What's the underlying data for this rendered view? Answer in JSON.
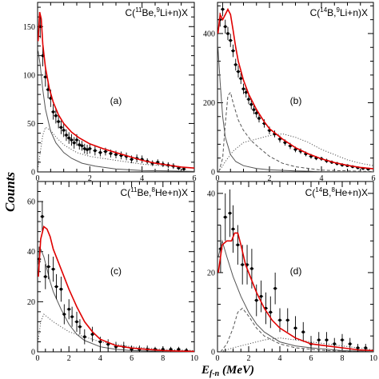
{
  "figure": {
    "ylabel": "Counts",
    "xlabel_main": "E",
    "xlabel_sub": "f-n",
    "xlabel_unit": " (MeV)"
  },
  "chart_data": [
    {
      "type": "scatter",
      "panel": "(a)",
      "title": {
        "pre": "C(",
        "sup1": "11",
        "mid": "Be,",
        "sup2": "9",
        "post": "Li+n)X"
      },
      "xlim": [
        0,
        6
      ],
      "ylim": [
        0,
        175
      ],
      "xticks": [
        0,
        2,
        4,
        6
      ],
      "yticks": [
        0,
        50,
        100,
        150
      ],
      "points": {
        "x": [
          0.1,
          0.2,
          0.3,
          0.4,
          0.5,
          0.6,
          0.7,
          0.8,
          0.9,
          1.0,
          1.1,
          1.2,
          1.3,
          1.4,
          1.5,
          1.6,
          1.7,
          1.8,
          1.9,
          2.0,
          2.2,
          2.4,
          2.6,
          2.8,
          3.0,
          3.2,
          3.4,
          3.6,
          3.8,
          4.0,
          4.2,
          4.4,
          4.6,
          4.8,
          5.0,
          5.2,
          5.4,
          5.6
        ],
        "y": [
          150,
          120,
          98,
          85,
          76,
          62,
          58,
          52,
          46,
          43,
          38,
          35,
          33,
          30,
          33,
          28,
          27,
          24,
          23,
          24,
          22,
          20,
          21,
          19,
          18,
          17,
          16,
          13,
          14,
          13,
          11,
          9,
          10,
          8,
          7,
          6,
          4,
          3
        ],
        "err": [
          12,
          11,
          10,
          9,
          9,
          8,
          8,
          7,
          7,
          7,
          6,
          6,
          6,
          6,
          6,
          5,
          5,
          5,
          5,
          5,
          5,
          4,
          4,
          4,
          4,
          4,
          4,
          4,
          4,
          4,
          3,
          3,
          3,
          3,
          3,
          3,
          2,
          2
        ]
      },
      "fit_total": {
        "x": [
          0.02,
          0.08,
          0.14,
          0.2,
          0.3,
          0.45,
          0.6,
          0.8,
          1.0,
          1.3,
          1.6,
          2.0,
          2.5,
          3.0,
          3.5,
          4.0,
          4.5,
          5.0,
          5.5,
          6.0
        ],
        "y": [
          135,
          165,
          158,
          132,
          108,
          86,
          72,
          59,
          50,
          41,
          35,
          29,
          24,
          20,
          16,
          12,
          9,
          7,
          5,
          4
        ]
      },
      "component_solid": {
        "x": [
          0.02,
          0.1,
          0.2,
          0.3,
          0.5,
          0.7,
          1.0,
          1.3,
          1.7,
          2.2,
          3.0,
          4.0,
          5.0,
          6.0
        ],
        "y": [
          125,
          110,
          85,
          65,
          42,
          30,
          20,
          14,
          9,
          6,
          3,
          1.5,
          1,
          0.5
        ]
      },
      "component_dotted": {
        "x": [
          0.02,
          0.1,
          0.2,
          0.3,
          0.5,
          0.7,
          1.0,
          1.5,
          2.0,
          3.0,
          4.0,
          5.0,
          6.0
        ],
        "y": [
          5,
          20,
          38,
          46,
          43,
          36,
          28,
          20,
          16,
          12,
          8,
          6,
          4
        ]
      }
    },
    {
      "type": "scatter",
      "panel": "(b)",
      "title": {
        "pre": "C(",
        "sup1": "14",
        "mid": "B,",
        "sup2": "9",
        "post": "Li+n)X"
      },
      "xlim": [
        0,
        6
      ],
      "ylim": [
        0,
        490
      ],
      "xticks": [
        0,
        2,
        4,
        6
      ],
      "yticks": [
        0,
        200,
        400
      ],
      "points": {
        "x": [
          0.1,
          0.2,
          0.3,
          0.4,
          0.5,
          0.6,
          0.7,
          0.8,
          0.9,
          1.0,
          1.1,
          1.2,
          1.3,
          1.4,
          1.5,
          1.6,
          1.8,
          2.0,
          2.2,
          2.4,
          2.6,
          2.8,
          3.0,
          3.2,
          3.4,
          3.6,
          3.8,
          4.0,
          4.2,
          4.4,
          4.6,
          4.8,
          5.0,
          5.2,
          5.4,
          5.6,
          5.8
        ],
        "y": [
          440,
          470,
          420,
          400,
          380,
          350,
          310,
          290,
          270,
          240,
          230,
          210,
          195,
          180,
          170,
          155,
          140,
          120,
          110,
          95,
          85,
          75,
          65,
          60,
          52,
          45,
          40,
          38,
          32,
          28,
          24,
          20,
          18,
          15,
          12,
          10,
          8
        ],
        "err": [
          20,
          20,
          20,
          19,
          19,
          18,
          17,
          17,
          16,
          15,
          15,
          14,
          14,
          13,
          13,
          12,
          12,
          11,
          10,
          10,
          9,
          9,
          8,
          8,
          7,
          7,
          6,
          6,
          6,
          5,
          5,
          5,
          4,
          4,
          4,
          3,
          3
        ]
      },
      "fit_total": {
        "x": [
          0.02,
          0.1,
          0.2,
          0.3,
          0.4,
          0.5,
          0.6,
          0.7,
          0.8,
          1.0,
          1.2,
          1.5,
          1.8,
          2.0,
          2.5,
          3.0,
          3.5,
          4.0,
          4.5,
          5.0,
          5.5,
          6.0
        ],
        "y": [
          400,
          455,
          440,
          455,
          470,
          455,
          410,
          360,
          320,
          265,
          225,
          180,
          145,
          125,
          95,
          70,
          52,
          38,
          27,
          19,
          13,
          9
        ]
      },
      "component_solid": {
        "x": [
          0.02,
          0.1,
          0.2,
          0.3,
          0.5,
          0.7,
          1.0,
          1.5,
          2.0,
          3.0,
          4.0,
          5.0,
          6.0
        ],
        "y": [
          360,
          260,
          160,
          100,
          50,
          30,
          18,
          10,
          6,
          3,
          1,
          0.5,
          0.3
        ]
      },
      "component_dashed": {
        "x": [
          0.05,
          0.2,
          0.3,
          0.4,
          0.5,
          0.6,
          0.8,
          1.0,
          1.3,
          1.6,
          2.0,
          2.5,
          3.0,
          4.0,
          6.0
        ],
        "y": [
          0,
          40,
          140,
          220,
          230,
          200,
          150,
          120,
          90,
          70,
          45,
          25,
          15,
          5,
          1
        ]
      },
      "component_dotted": {
        "x": [
          0.05,
          0.3,
          0.6,
          1.0,
          1.5,
          2.0,
          2.5,
          3.0,
          3.5,
          4.0,
          4.5,
          5.0,
          5.5,
          6.0
        ],
        "y": [
          0,
          30,
          60,
          85,
          95,
          105,
          110,
          100,
          85,
          65,
          50,
          35,
          25,
          18
        ]
      }
    },
    {
      "type": "scatter",
      "panel": "(c)",
      "title": {
        "pre": "C(",
        "sup1": "11",
        "mid": "Be,",
        "sup2": "8",
        "post": "He+n)X"
      },
      "xlim": [
        0,
        10
      ],
      "ylim": [
        0,
        68
      ],
      "xticks": [
        0,
        2,
        4,
        6,
        8,
        10
      ],
      "yticks": [
        0,
        20,
        40,
        60
      ],
      "points": {
        "x": [
          0.1,
          0.3,
          0.5,
          0.7,
          1.0,
          1.2,
          1.5,
          1.7,
          2.0,
          2.2,
          2.5,
          2.7,
          3.0,
          3.5,
          4.0,
          4.5,
          5.0,
          5.5,
          6.0,
          6.5,
          7.0,
          7.5,
          8.0,
          8.5,
          9.0,
          9.5
        ],
        "y": [
          37,
          54,
          30,
          34,
          33,
          26,
          25,
          15,
          17,
          14,
          12,
          10,
          6,
          7,
          4,
          3,
          2,
          2,
          1,
          1,
          1,
          1,
          1,
          1,
          1,
          0.5
        ],
        "err": [
          5,
          6,
          5,
          5,
          5,
          5,
          5,
          4,
          4,
          4,
          4,
          3,
          3,
          3,
          2,
          2,
          2,
          2,
          1.5,
          1.5,
          1.5,
          1,
          1,
          1,
          1,
          1
        ]
      },
      "fit_total": {
        "x": [
          0.05,
          0.2,
          0.4,
          0.6,
          0.8,
          1.0,
          1.5,
          2.0,
          2.5,
          3.0,
          3.5,
          4.0,
          5.0,
          6.0,
          7.0,
          8.0,
          9.0,
          10.0
        ],
        "y": [
          30,
          45,
          50,
          49,
          46,
          41,
          33,
          25,
          18,
          12,
          8,
          5,
          2.5,
          1.5,
          1,
          0.5,
          0.3,
          0.2
        ]
      },
      "component_solid": {
        "x": [
          0.05,
          0.2,
          0.4,
          0.6,
          0.8,
          1.0,
          1.5,
          2.0,
          2.5,
          3.0,
          4.0,
          5.0,
          6.0,
          8.0,
          10.0
        ],
        "y": [
          35,
          41,
          38,
          33,
          28,
          24,
          17,
          11,
          7,
          4.5,
          2,
          1,
          0.5,
          0.2,
          0.1
        ]
      },
      "component_dotted": {
        "x": [
          0.05,
          0.2,
          0.4,
          0.6,
          1.0,
          1.5,
          2.0,
          3.0,
          4.0,
          5.0,
          6.0,
          8.0,
          10.0
        ],
        "y": [
          5,
          12,
          15,
          14,
          12,
          10,
          8,
          6,
          4,
          3,
          2,
          1,
          0.5
        ]
      }
    },
    {
      "type": "scatter",
      "panel": "(d)",
      "title": {
        "pre": "C(",
        "sup1": "14",
        "mid": "B,",
        "sup2": "8",
        "post": "He+n)X"
      },
      "xlim": [
        0,
        10
      ],
      "ylim": [
        0,
        43
      ],
      "xticks": [
        0,
        2,
        4,
        6,
        8,
        10
      ],
      "yticks": [
        0,
        20,
        40
      ],
      "points": {
        "x": [
          0.2,
          0.5,
          0.8,
          1.0,
          1.3,
          1.6,
          1.9,
          2.2,
          2.5,
          2.8,
          3.1,
          3.4,
          3.7,
          4.0,
          4.5,
          5.0,
          5.5,
          6.0,
          6.5,
          7.0,
          7.5,
          8.0,
          8.5,
          9.0,
          9.5
        ],
        "y": [
          26,
          34,
          35,
          31,
          27,
          22,
          22,
          21,
          13,
          14,
          11,
          10,
          16,
          8,
          8,
          6,
          5,
          2,
          3,
          3,
          2,
          3,
          2,
          1,
          1
        ],
        "err": [
          6,
          6,
          6,
          6,
          5,
          5,
          5,
          5,
          4,
          4,
          4,
          4,
          4,
          3,
          3,
          3,
          2.5,
          2,
          2,
          2,
          1.5,
          1.5,
          1.5,
          1,
          1
        ]
      },
      "fit_total": {
        "x": [
          0.05,
          0.3,
          0.6,
          0.9,
          1.1,
          1.3,
          1.5,
          1.8,
          2.0,
          2.5,
          3.0,
          3.5,
          4.0,
          5.0,
          6.0,
          7.0,
          8.0,
          9.0,
          10.0
        ],
        "y": [
          20,
          27,
          28,
          28,
          30,
          30,
          27,
          22,
          20,
          15,
          11,
          8,
          6,
          3.5,
          2,
          1.5,
          1,
          0.5,
          0.3
        ]
      },
      "component_solid": {
        "x": [
          0.05,
          0.3,
          0.6,
          1.0,
          1.5,
          2.0,
          2.5,
          3.0,
          4.0,
          5.0,
          6.0,
          8.0,
          10.0
        ],
        "y": [
          24,
          28,
          24,
          19,
          14,
          10,
          7,
          5,
          2.5,
          1.5,
          1,
          0.3,
          0.1
        ]
      },
      "component_dashed": {
        "x": [
          0.2,
          0.6,
          1.0,
          1.3,
          1.6,
          2.0,
          2.5,
          3.0,
          4.0,
          5.0,
          7.0,
          10.0
        ],
        "y": [
          0,
          2,
          6,
          10,
          11,
          9,
          6,
          4,
          2,
          1,
          0.3,
          0.1
        ]
      },
      "component_dotted": {
        "x": [
          0.2,
          1.0,
          2.0,
          3.0,
          4.0,
          5.0,
          6.0,
          7.0,
          8.0,
          10.0
        ],
        "y": [
          0,
          1,
          2,
          3,
          3.5,
          3,
          2.5,
          2,
          1.5,
          0.5
        ]
      }
    }
  ],
  "colors": {
    "fit": "#e00000",
    "data": "#000000",
    "component": "#555555"
  }
}
